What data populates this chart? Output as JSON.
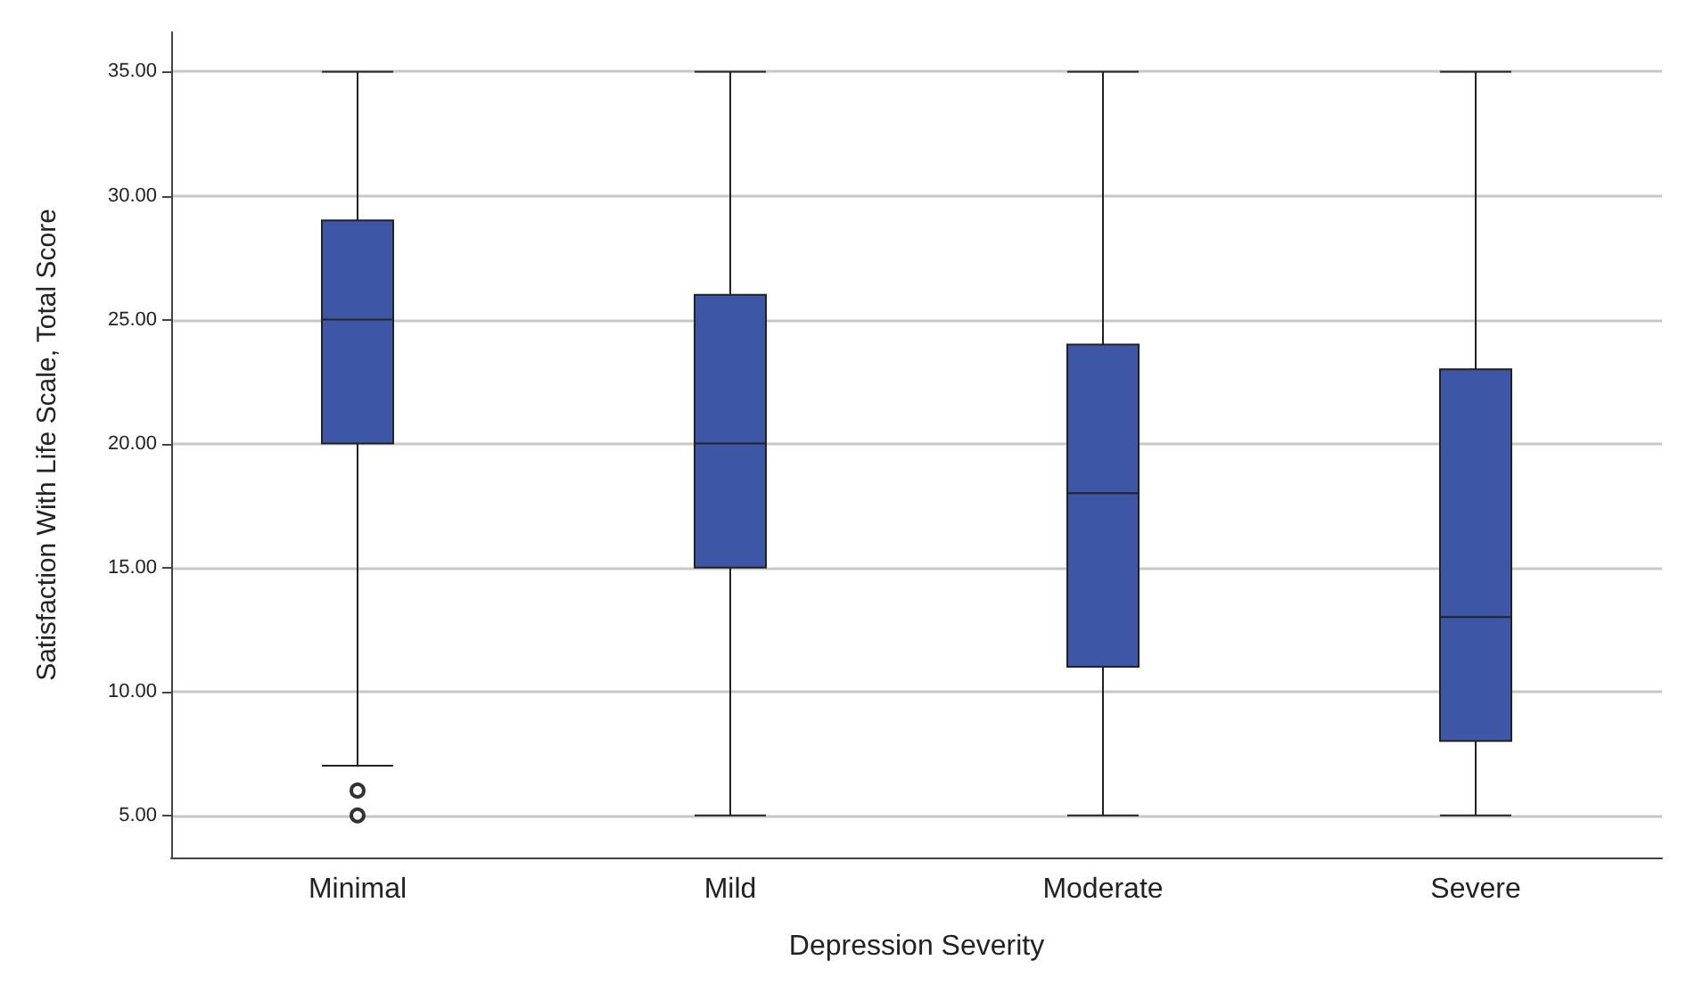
{
  "chart_data": {
    "type": "box",
    "xlabel": "Depression Severity",
    "ylabel": "Satisfaction With Life Scale, Total Score",
    "categories": [
      "Minimal",
      "Mild",
      "Moderate",
      "Severe"
    ],
    "boxes": [
      {
        "low": 7,
        "q1": 20,
        "median": 25,
        "q3": 29,
        "high": 35,
        "outliers": [
          6,
          5
        ]
      },
      {
        "low": 5,
        "q1": 15,
        "median": 20,
        "q3": 26,
        "high": 35
      },
      {
        "low": 5,
        "q1": 11,
        "median": 18,
        "q3": 24,
        "high": 35
      },
      {
        "low": 5,
        "q1": 8,
        "median": 13,
        "q3": 23,
        "high": 35
      }
    ],
    "color": "#3d56a6",
    "ylim": [
      3.3,
      36.6
    ],
    "yticks": [
      {
        "value": 5,
        "label": "5.00"
      },
      {
        "value": 10,
        "label": "10.00"
      },
      {
        "value": 15,
        "label": "15.00"
      },
      {
        "value": 20,
        "label": "20.00"
      },
      {
        "value": 25,
        "label": "25.00"
      },
      {
        "value": 30,
        "label": "30.00"
      },
      {
        "value": 35,
        "label": "35.00"
      }
    ],
    "grid": "y"
  }
}
